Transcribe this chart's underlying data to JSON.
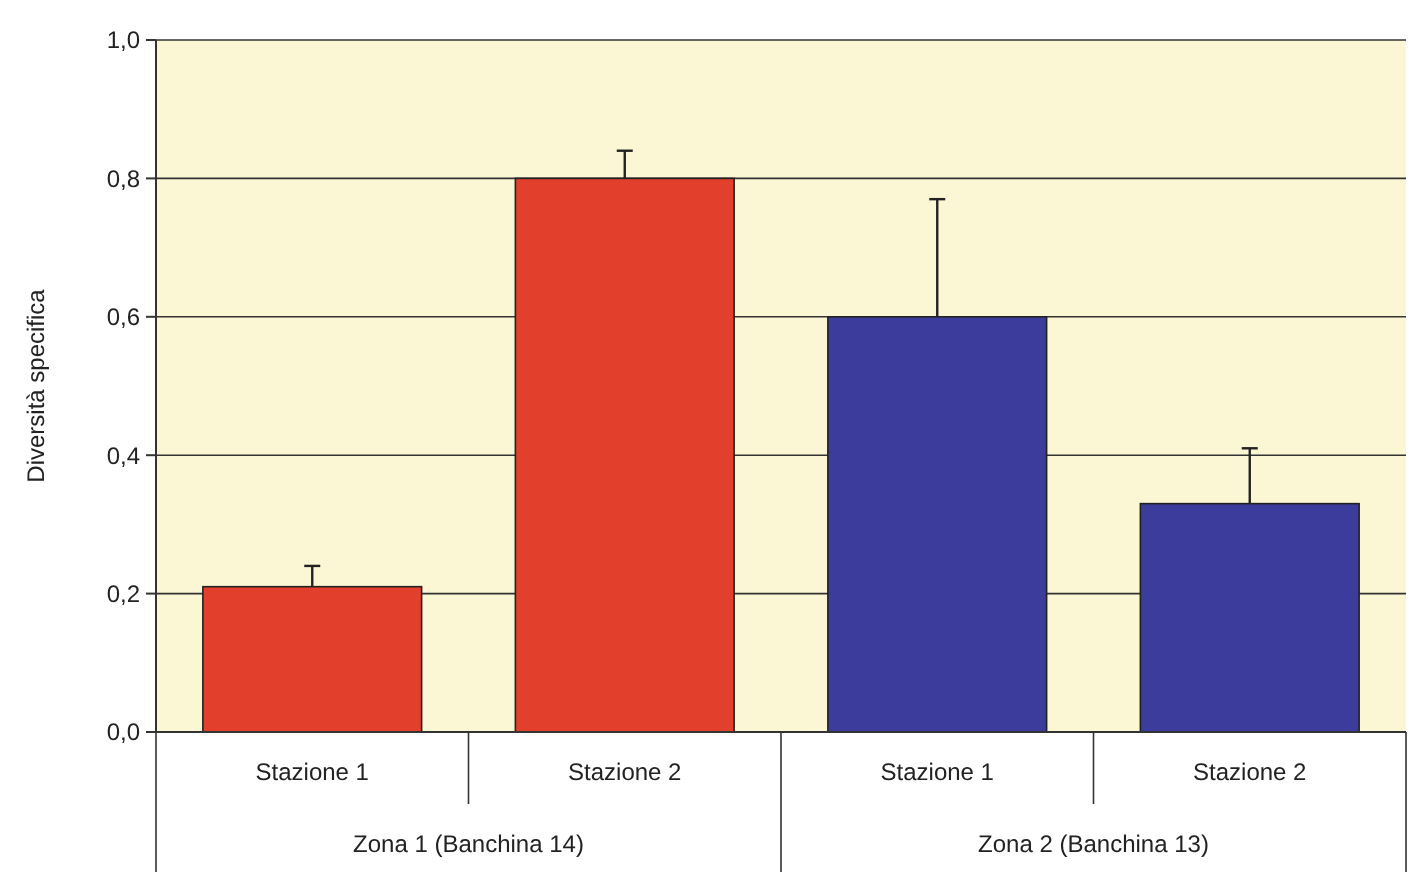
{
  "chart_data": {
    "type": "bar",
    "ylabel": "Diversità specifica",
    "categories": [
      "Stazione 1",
      "Stazione 2",
      "Stazione 1",
      "Stazione 2"
    ],
    "values": [
      0.21,
      0.8,
      0.6,
      0.33
    ],
    "colors": [
      "#e2402c",
      "#e2402c",
      "#3c3c9c",
      "#3c3c9c"
    ],
    "errors": [
      [
        0.21,
        0.24
      ],
      [
        0.8,
        0.84
      ],
      [
        0.6,
        0.77
      ],
      [
        0.33,
        0.41
      ]
    ],
    "ylim": [
      0,
      1
    ],
    "yticks": [
      {
        "value": 0,
        "label": "0,0"
      },
      {
        "value": 0.2,
        "label": "0,2"
      },
      {
        "value": 0.4,
        "label": "0,4"
      },
      {
        "value": 0.6,
        "label": "0,6"
      },
      {
        "value": 0.8,
        "label": "0,8"
      },
      {
        "value": 1,
        "label": "1,0"
      }
    ],
    "grid": "y",
    "annotations": [
      "Zona 1 (Banchina 14)",
      "Zona 2 (Banchina 13)"
    ]
  }
}
